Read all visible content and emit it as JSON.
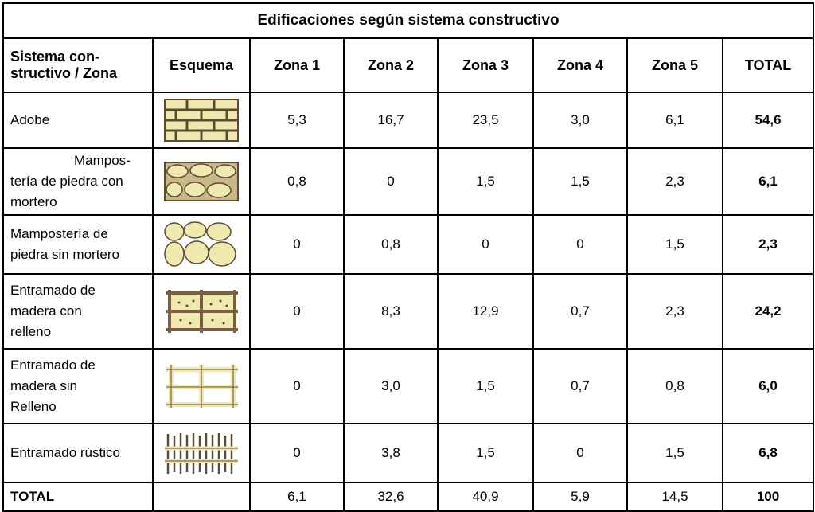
{
  "table": {
    "title": "Edificaciones según sistema constructivo",
    "headers": [
      "Sistema con-\nstructivo / Zona",
      "Esquema",
      "Zona 1",
      "Zona 2",
      "Zona 3",
      "Zona 4",
      "Zona 5",
      "TOTAL"
    ],
    "rows": [
      {
        "name_lines": [
          "Adobe"
        ],
        "scheme_icon": "adobe-brick-icon",
        "values": [
          "5,3",
          "16,7",
          "23,5",
          "3,0",
          "6,1"
        ],
        "total": "54,6"
      },
      {
        "name_lines": [
          "Mampos-",
          "tería de piedra con",
          "mortero"
        ],
        "scheme_icon": "stone-with-mortar-icon",
        "values": [
          "0,8",
          "0",
          "1,5",
          "1,5",
          "2,3"
        ],
        "total": "6,1"
      },
      {
        "name_lines": [
          "Mampostería de",
          "piedra sin mortero"
        ],
        "scheme_icon": "stone-without-mortar-icon",
        "values": [
          "0",
          "0,8",
          "0",
          "0",
          "1,5"
        ],
        "total": "2,3"
      },
      {
        "name_lines": [
          "Entramado de",
          "madera con",
          "relleno"
        ],
        "scheme_icon": "timber-frame-infill-icon",
        "values": [
          "0",
          "8,3",
          "12,9",
          "0,7",
          "2,3"
        ],
        "total": "24,2"
      },
      {
        "name_lines": [
          "Entramado de",
          "madera sin",
          "Relleno"
        ],
        "scheme_icon": "timber-frame-open-icon",
        "values": [
          "0",
          "3,0",
          "1,5",
          "0,7",
          "0,8"
        ],
        "total": "6,0"
      },
      {
        "name_lines": [
          "Entramado rústico"
        ],
        "scheme_icon": "rustic-frame-icon",
        "values": [
          "0",
          "3,8",
          "1,5",
          "0",
          "1,5"
        ],
        "total": "6,8"
      }
    ],
    "footer": {
      "label": "TOTAL",
      "values": [
        "6,1",
        "32,6",
        "40,9",
        "5,9",
        "14,5"
      ],
      "total": "100"
    }
  },
  "colors": {
    "fill": "#efe9b0",
    "stroke": "#5c4a32",
    "wood": "#7a6040"
  }
}
